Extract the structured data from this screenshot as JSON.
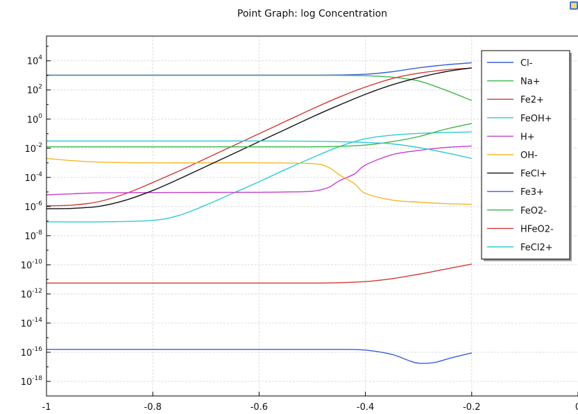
{
  "chart_data": {
    "type": "line",
    "title": "Point Graph: log Concentration",
    "xlim": [
      -1.0,
      0.0
    ],
    "ylim_log10": [
      -19,
      5.7
    ],
    "yscale": "log",
    "grid": true,
    "legend_position": "top-right",
    "x_ticks": [
      {
        "value": -1.0,
        "label": "-1"
      },
      {
        "value": -0.8,
        "label": "-0.8"
      },
      {
        "value": -0.6,
        "label": "-0.6"
      },
      {
        "value": -0.4,
        "label": "-0.4"
      },
      {
        "value": -0.2,
        "label": "-0.2"
      },
      {
        "value": 0.0,
        "label": "0"
      }
    ],
    "y_ticks": [
      {
        "exp": 4,
        "base": "10",
        "sup": "4"
      },
      {
        "exp": 2,
        "base": "10",
        "sup": "2"
      },
      {
        "exp": 0,
        "base": "10",
        "sup": "0"
      },
      {
        "exp": -2,
        "base": "10",
        "sup": "-2"
      },
      {
        "exp": -4,
        "base": "10",
        "sup": "-4"
      },
      {
        "exp": -6,
        "base": "10",
        "sup": "-6"
      },
      {
        "exp": -8,
        "base": "10",
        "sup": "-8"
      },
      {
        "exp": -10,
        "base": "10",
        "sup": "-10"
      },
      {
        "exp": -12,
        "base": "10",
        "sup": "-12"
      },
      {
        "exp": -14,
        "base": "10",
        "sup": "-14"
      },
      {
        "exp": -16,
        "base": "10",
        "sup": "-16"
      },
      {
        "exp": -18,
        "base": "10",
        "sup": "-18"
      }
    ],
    "series": [
      {
        "name": "Cl-",
        "color": "#3b5fd6",
        "points": [
          [
            -1,
            3.02
          ],
          [
            -0.8,
            3.02
          ],
          [
            -0.6,
            3.02
          ],
          [
            -0.5,
            3.02
          ],
          [
            -0.45,
            3.03
          ],
          [
            -0.4,
            3.08
          ],
          [
            -0.35,
            3.25
          ],
          [
            -0.3,
            3.52
          ],
          [
            -0.25,
            3.72
          ],
          [
            -0.2,
            3.87
          ]
        ]
      },
      {
        "name": "Na+",
        "color": "#3db54a",
        "points": [
          [
            -1,
            3.0
          ],
          [
            -0.8,
            3.0
          ],
          [
            -0.6,
            3.0
          ],
          [
            -0.45,
            3.0
          ],
          [
            -0.4,
            2.98
          ],
          [
            -0.35,
            2.88
          ],
          [
            -0.3,
            2.62
          ],
          [
            -0.25,
            2.0
          ],
          [
            -0.2,
            1.28
          ]
        ]
      },
      {
        "name": "Fe2+",
        "color": "#d03a36",
        "points": [
          [
            -1,
            -5.95
          ],
          [
            -0.95,
            -5.9
          ],
          [
            -0.9,
            -5.65
          ],
          [
            -0.85,
            -5.1
          ],
          [
            -0.8,
            -4.35
          ],
          [
            -0.75,
            -3.55
          ],
          [
            -0.7,
            -2.7
          ],
          [
            -0.65,
            -1.85
          ],
          [
            -0.6,
            -1.0
          ],
          [
            -0.55,
            -0.15
          ],
          [
            -0.5,
            0.7
          ],
          [
            -0.45,
            1.5
          ],
          [
            -0.4,
            2.2
          ],
          [
            -0.35,
            2.78
          ],
          [
            -0.3,
            3.15
          ],
          [
            -0.25,
            3.38
          ],
          [
            -0.2,
            3.5
          ]
        ]
      },
      {
        "name": "FeOH+",
        "color": "#2ec9d6",
        "points": [
          [
            -1,
            -7.05
          ],
          [
            -0.9,
            -7.05
          ],
          [
            -0.8,
            -6.95
          ],
          [
            -0.75,
            -6.6
          ],
          [
            -0.7,
            -5.9
          ],
          [
            -0.65,
            -5.1
          ],
          [
            -0.6,
            -4.3
          ],
          [
            -0.55,
            -3.45
          ],
          [
            -0.5,
            -2.65
          ],
          [
            -0.45,
            -1.9
          ],
          [
            -0.4,
            -1.35
          ],
          [
            -0.35,
            -1.1
          ],
          [
            -0.3,
            -0.98
          ],
          [
            -0.25,
            -0.92
          ],
          [
            -0.2,
            -0.88
          ]
        ]
      },
      {
        "name": "H+",
        "color": "#c43ecf",
        "points": [
          [
            -1,
            -5.2
          ],
          [
            -0.95,
            -5.12
          ],
          [
            -0.9,
            -5.06
          ],
          [
            -0.8,
            -5.04
          ],
          [
            -0.7,
            -5.03
          ],
          [
            -0.6,
            -5.02
          ],
          [
            -0.55,
            -5.0
          ],
          [
            -0.5,
            -4.95
          ],
          [
            -0.47,
            -4.7
          ],
          [
            -0.45,
            -4.25
          ],
          [
            -0.42,
            -3.75
          ],
          [
            -0.4,
            -3.15
          ],
          [
            -0.35,
            -2.45
          ],
          [
            -0.3,
            -2.15
          ],
          [
            -0.25,
            -1.95
          ],
          [
            -0.2,
            -1.85
          ]
        ]
      },
      {
        "name": "OH-",
        "color": "#f3b829",
        "points": [
          [
            -1,
            -2.7
          ],
          [
            -0.95,
            -2.85
          ],
          [
            -0.9,
            -2.95
          ],
          [
            -0.8,
            -3.0
          ],
          [
            -0.7,
            -3.0
          ],
          [
            -0.6,
            -3.0
          ],
          [
            -0.5,
            -3.05
          ],
          [
            -0.47,
            -3.3
          ],
          [
            -0.45,
            -3.8
          ],
          [
            -0.42,
            -4.45
          ],
          [
            -0.4,
            -5.1
          ],
          [
            -0.35,
            -5.55
          ],
          [
            -0.3,
            -5.7
          ],
          [
            -0.25,
            -5.8
          ],
          [
            -0.2,
            -5.85
          ]
        ]
      },
      {
        "name": "FeCl+",
        "color": "#111111",
        "points": [
          [
            -1,
            -6.15
          ],
          [
            -0.95,
            -6.12
          ],
          [
            -0.9,
            -5.98
          ],
          [
            -0.85,
            -5.55
          ],
          [
            -0.8,
            -4.9
          ],
          [
            -0.75,
            -4.1
          ],
          [
            -0.7,
            -3.25
          ],
          [
            -0.65,
            -2.4
          ],
          [
            -0.6,
            -1.55
          ],
          [
            -0.55,
            -0.7
          ],
          [
            -0.5,
            0.15
          ],
          [
            -0.45,
            0.95
          ],
          [
            -0.4,
            1.7
          ],
          [
            -0.35,
            2.35
          ],
          [
            -0.3,
            2.85
          ],
          [
            -0.25,
            3.25
          ],
          [
            -0.2,
            3.52
          ]
        ]
      },
      {
        "name": "Fe3+",
        "color": "#3b5fd6",
        "points": [
          [
            -1,
            -15.8
          ],
          [
            -0.8,
            -15.8
          ],
          [
            -0.6,
            -15.8
          ],
          [
            -0.45,
            -15.8
          ],
          [
            -0.4,
            -15.85
          ],
          [
            -0.35,
            -16.15
          ],
          [
            -0.32,
            -16.55
          ],
          [
            -0.3,
            -16.75
          ],
          [
            -0.27,
            -16.7
          ],
          [
            -0.24,
            -16.4
          ],
          [
            -0.2,
            -16.05
          ]
        ]
      },
      {
        "name": "FeO2-",
        "color": "#3db54a",
        "points": [
          [
            -1,
            -1.9
          ],
          [
            -0.8,
            -1.9
          ],
          [
            -0.6,
            -1.9
          ],
          [
            -0.5,
            -1.9
          ],
          [
            -0.45,
            -1.87
          ],
          [
            -0.4,
            -1.78
          ],
          [
            -0.35,
            -1.55
          ],
          [
            -0.3,
            -1.2
          ],
          [
            -0.25,
            -0.7
          ],
          [
            -0.2,
            -0.3
          ]
        ]
      },
      {
        "name": "HFeO2-",
        "color": "#d03a36",
        "points": [
          [
            -1,
            -11.25
          ],
          [
            -0.8,
            -11.25
          ],
          [
            -0.6,
            -11.25
          ],
          [
            -0.5,
            -11.25
          ],
          [
            -0.45,
            -11.23
          ],
          [
            -0.4,
            -11.15
          ],
          [
            -0.35,
            -10.95
          ],
          [
            -0.3,
            -10.65
          ],
          [
            -0.25,
            -10.3
          ],
          [
            -0.2,
            -9.95
          ]
        ]
      },
      {
        "name": "FeCl2+",
        "color": "#2ec9d6",
        "points": [
          [
            -1,
            -1.5
          ],
          [
            -0.8,
            -1.5
          ],
          [
            -0.6,
            -1.5
          ],
          [
            -0.5,
            -1.52
          ],
          [
            -0.45,
            -1.55
          ],
          [
            -0.4,
            -1.6
          ],
          [
            -0.35,
            -1.7
          ],
          [
            -0.3,
            -1.95
          ],
          [
            -0.25,
            -2.3
          ],
          [
            -0.2,
            -2.7
          ]
        ]
      }
    ]
  }
}
